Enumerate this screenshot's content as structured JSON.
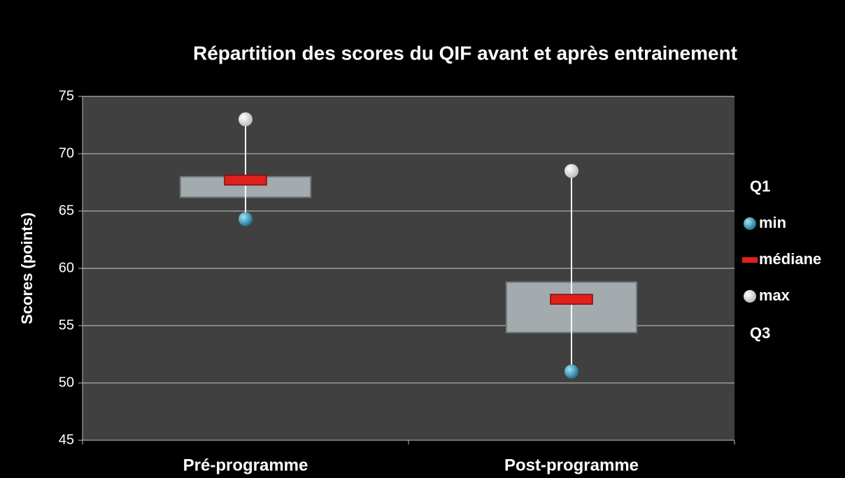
{
  "chart_data": {
    "type": "box",
    "title": "Répartition des scores du QIF avant et après entrainement",
    "y_label": "Scores (points)",
    "categories": [
      "Pré-programme",
      "Post-programme"
    ],
    "series": [
      {
        "name": "Q1",
        "color": "#a3abae",
        "marker": "none",
        "values": [
          66.2,
          54.4
        ]
      },
      {
        "name": "min",
        "color": "#2f9cc0",
        "marker": "circle",
        "values": [
          64.3,
          51
        ]
      },
      {
        "name": "médiane",
        "color": "#e0201c",
        "marker": "dash",
        "values": [
          67.7,
          57.3
        ]
      },
      {
        "name": "max",
        "color": "#ffffff",
        "marker": "circle",
        "values": [
          73,
          68.5
        ]
      },
      {
        "name": "Q3",
        "color": "#a3abae",
        "marker": "none",
        "values": [
          68,
          58.8
        ]
      }
    ],
    "ylim": [
      45,
      75
    ],
    "yticks": [
      45,
      50,
      55,
      60,
      65,
      70,
      75
    ],
    "grid": true
  }
}
